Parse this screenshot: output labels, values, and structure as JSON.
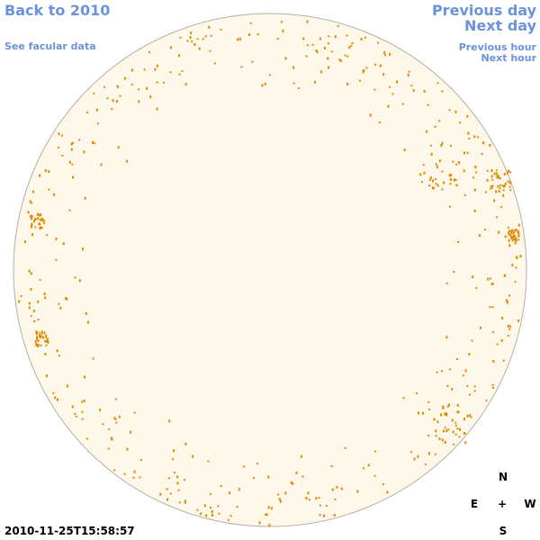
{
  "links": {
    "back": "Back to 2010",
    "facular": "See facular data",
    "previous_day": "Previous day",
    "next_day": "Next day",
    "previous_hour": "Previous hour",
    "next_hour": "Next hour"
  },
  "timestamp": "2010-11-25T15:58:57",
  "compass": {
    "north": "N",
    "east": "E",
    "center": "+",
    "west": "W",
    "south": "S"
  }
}
